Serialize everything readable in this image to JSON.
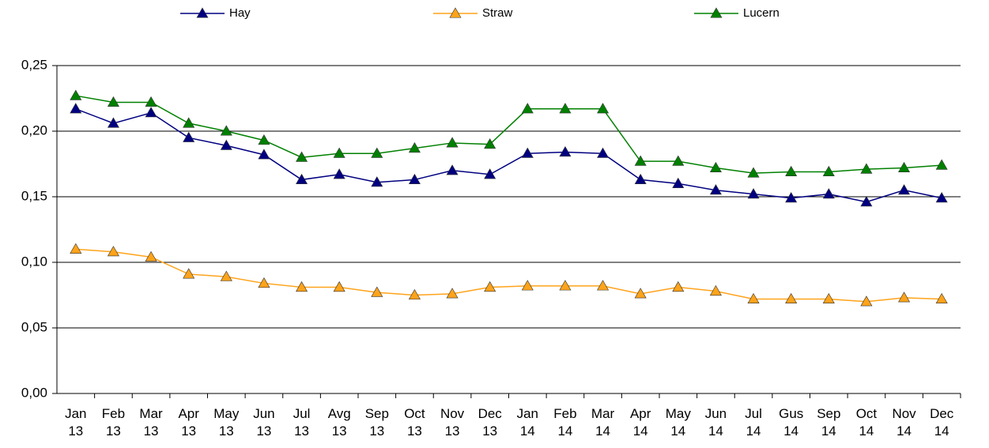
{
  "chart_data": {
    "type": "line",
    "categories": [
      "Jan 13",
      "Feb 13",
      "Mar 13",
      "Apr 13",
      "May 13",
      "Jun 13",
      "Jul 13",
      "Avg 13",
      "Sep 13",
      "Oct 13",
      "Nov 13",
      "Dec 13",
      "Jan 14",
      "Feb 14",
      "Mar 14",
      "Apr 14",
      "May 14",
      "Jun 14",
      "Jul 14",
      "Gus 14",
      "Sep 14",
      "Oct 14",
      "Nov 14",
      "Dec 14"
    ],
    "series": [
      {
        "name": "Hay",
        "color": "#000080",
        "values": [
          0.217,
          0.206,
          0.214,
          0.195,
          0.189,
          0.182,
          0.163,
          0.167,
          0.161,
          0.163,
          0.17,
          0.167,
          0.183,
          0.184,
          0.183,
          0.163,
          0.16,
          0.155,
          0.152,
          0.149,
          0.152,
          0.146,
          0.155,
          0.149
        ]
      },
      {
        "name": "Straw",
        "color": "#FFA31A",
        "values": [
          0.11,
          0.108,
          0.104,
          0.091,
          0.089,
          0.084,
          0.081,
          0.081,
          0.077,
          0.075,
          0.076,
          0.081,
          0.082,
          0.082,
          0.082,
          0.076,
          0.081,
          0.078,
          0.072,
          0.072,
          0.072,
          0.07,
          0.073,
          0.072
        ]
      },
      {
        "name": "Lucern",
        "color": "#008000",
        "values": [
          0.227,
          0.222,
          0.222,
          0.206,
          0.2,
          0.193,
          0.18,
          0.183,
          0.183,
          0.187,
          0.191,
          0.19,
          0.217,
          0.217,
          0.217,
          0.177,
          0.177,
          0.172,
          0.168,
          0.169,
          0.169,
          0.171,
          0.172,
          0.174
        ]
      }
    ],
    "ylim": [
      0,
      0.25
    ],
    "yticks": [
      {
        "value": 0,
        "label": "0,00"
      },
      {
        "value": 0.05,
        "label": "0,05"
      },
      {
        "value": 0.1,
        "label": "0,10"
      },
      {
        "value": 0.15,
        "label": "0,15"
      },
      {
        "value": 0.2,
        "label": "0,20"
      },
      {
        "value": 0.25,
        "label": "0,25"
      }
    ],
    "grid": true,
    "legend": "top"
  }
}
